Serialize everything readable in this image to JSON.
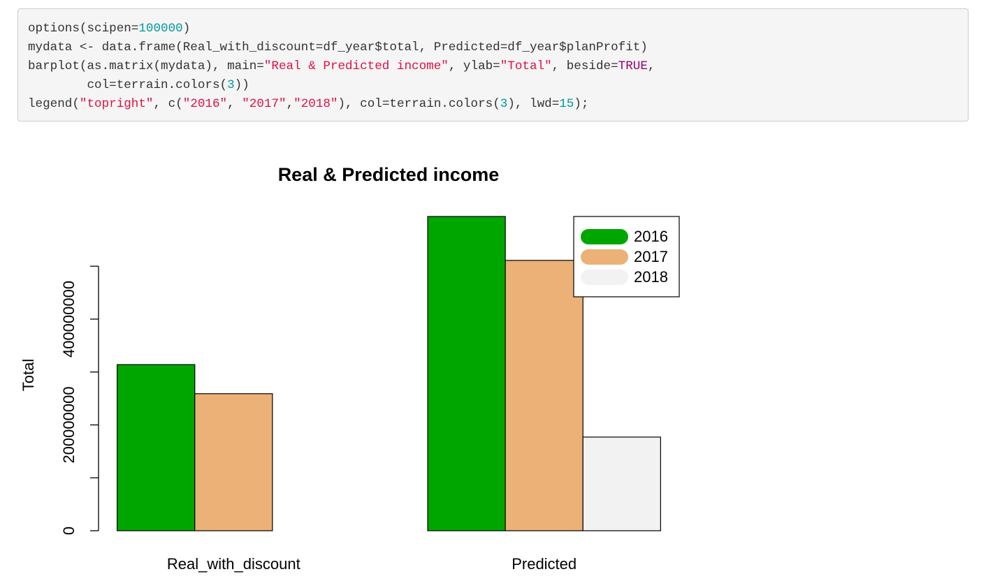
{
  "code": {
    "lines": [
      [
        {
          "text": "options(scipen=",
          "color": "#333333"
        },
        {
          "text": "100000",
          "color": "#009999"
        },
        {
          "text": ")",
          "color": "#333333"
        }
      ],
      [
        {
          "text": "mydata <- data.frame(Real_with_discount=df_year$total, Predicted=df_year$planProfit)",
          "color": "#333333"
        }
      ],
      [
        {
          "text": "barplot(as.matrix(mydata), main=",
          "color": "#333333"
        },
        {
          "text": "\"Real & Predicted income\"",
          "color": "#dd1144"
        },
        {
          "text": ", ylab=",
          "color": "#333333"
        },
        {
          "text": "\"Total\"",
          "color": "#dd1144"
        },
        {
          "text": ", beside=",
          "color": "#333333"
        },
        {
          "text": "TRUE",
          "color": "#990073"
        },
        {
          "text": ",",
          "color": "#333333"
        }
      ],
      [
        {
          "text": "        col=terrain.colors(",
          "color": "#333333"
        },
        {
          "text": "3",
          "color": "#009999"
        },
        {
          "text": "))",
          "color": "#333333"
        }
      ],
      [
        {
          "text": "legend(",
          "color": "#333333"
        },
        {
          "text": "\"topright\"",
          "color": "#dd1144"
        },
        {
          "text": ", c(",
          "color": "#333333"
        },
        {
          "text": "\"2016\"",
          "color": "#dd1144"
        },
        {
          "text": ", ",
          "color": "#333333"
        },
        {
          "text": "\"2017\"",
          "color": "#dd1144"
        },
        {
          "text": ",",
          "color": "#333333"
        },
        {
          "text": "\"2018\"",
          "color": "#dd1144"
        },
        {
          "text": "), col=terrain.colors(",
          "color": "#333333"
        },
        {
          "text": "3",
          "color": "#009999"
        },
        {
          "text": "), lwd=",
          "color": "#333333"
        },
        {
          "text": "15",
          "color": "#009999"
        },
        {
          "text": ");",
          "color": "#333333"
        }
      ]
    ]
  },
  "chart_data": {
    "type": "bar",
    "title": "Real & Predicted income",
    "ylabel": "Total",
    "categories": [
      "Real_with_discount",
      "Predicted"
    ],
    "series": [
      {
        "name": "2016",
        "color": "#00A600",
        "values": [
          314000000,
          594000000
        ]
      },
      {
        "name": "2017",
        "color": "#ECB176",
        "values": [
          259000000,
          511000000
        ]
      },
      {
        "name": "2018",
        "color": "#F2F2F2",
        "values": [
          null,
          177000000
        ]
      }
    ],
    "ylim": [
      0,
      594000000
    ],
    "yticks": [
      0,
      {
        "value": 100000000,
        "label": null
      },
      200000000,
      {
        "value": 300000000,
        "label": null
      },
      400000000,
      {
        "value": 500000000,
        "label": null
      }
    ],
    "legend": "topright"
  }
}
